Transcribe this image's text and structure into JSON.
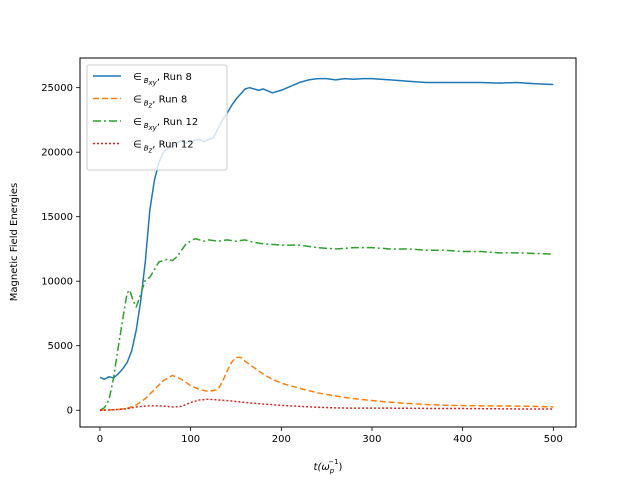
{
  "chart_data": {
    "type": "line",
    "xlabel_var": "t",
    "xlabel_paren_open": "(ω",
    "xlabel_sub": "p",
    "xlabel_sup": "−1",
    "xlabel_paren_close": ")",
    "ylabel": "Magnetic Field Energies",
    "xlim": [
      -22,
      525
    ],
    "ylim": [
      -1300,
      27300
    ],
    "xticks": [
      0,
      100,
      200,
      300,
      400,
      500
    ],
    "yticks": [
      0,
      5000,
      10000,
      15000,
      20000,
      25000
    ],
    "grid": false,
    "legend_position": "upper-left",
    "series": [
      {
        "label_symbol": "∈",
        "label_sub_main": "B",
        "label_sub_sub": "xy",
        "label_run": ", Run 8",
        "color": "#1f77b4",
        "style": "solid",
        "x": [
          0,
          5,
          10,
          15,
          20,
          25,
          30,
          35,
          40,
          45,
          50,
          55,
          60,
          65,
          70,
          75,
          80,
          85,
          90,
          95,
          100,
          105,
          110,
          115,
          120,
          125,
          130,
          135,
          140,
          145,
          150,
          155,
          160,
          165,
          170,
          175,
          180,
          190,
          200,
          210,
          220,
          230,
          240,
          250,
          260,
          270,
          280,
          290,
          300,
          320,
          340,
          360,
          380,
          400,
          420,
          440,
          460,
          480,
          500
        ],
        "y": [
          2550,
          2400,
          2600,
          2500,
          2800,
          3200,
          3700,
          4600,
          6200,
          8500,
          11500,
          15500,
          17800,
          19200,
          20000,
          20300,
          20400,
          20700,
          20900,
          20700,
          20800,
          20900,
          21000,
          20800,
          21000,
          21100,
          21800,
          22500,
          23000,
          23600,
          24100,
          24500,
          24900,
          25000,
          24900,
          24800,
          24900,
          24600,
          24800,
          25100,
          25400,
          25600,
          25700,
          25700,
          25600,
          25700,
          25650,
          25700,
          25700,
          25600,
          25500,
          25400,
          25400,
          25400,
          25400,
          25350,
          25400,
          25300,
          25250
        ]
      },
      {
        "label_symbol": "∈",
        "label_sub_main": "B",
        "label_sub_sub": "z",
        "label_run": ", Run 8",
        "color": "#ff7f0e",
        "style": "dashed",
        "x": [
          0,
          10,
          20,
          30,
          40,
          50,
          60,
          70,
          80,
          90,
          100,
          110,
          120,
          130,
          135,
          140,
          145,
          150,
          155,
          160,
          170,
          180,
          190,
          200,
          220,
          240,
          260,
          280,
          300,
          320,
          340,
          360,
          380,
          400,
          420,
          440,
          460,
          480,
          500
        ],
        "y": [
          0,
          30,
          60,
          150,
          400,
          900,
          1600,
          2300,
          2700,
          2400,
          1900,
          1600,
          1450,
          1600,
          2200,
          3000,
          3700,
          4100,
          4100,
          3800,
          3300,
          2800,
          2400,
          2100,
          1700,
          1350,
          1100,
          900,
          750,
          620,
          520,
          440,
          390,
          360,
          340,
          330,
          320,
          300,
          250
        ]
      },
      {
        "label_symbol": "∈",
        "label_sub_main": "B",
        "label_sub_sub": "xy",
        "label_run": ", Run 12",
        "color": "#2ca02c",
        "style": "dashdot",
        "x": [
          0,
          5,
          10,
          15,
          20,
          25,
          30,
          33,
          36,
          40,
          45,
          50,
          55,
          60,
          65,
          70,
          75,
          80,
          85,
          90,
          95,
          100,
          105,
          110,
          115,
          120,
          130,
          140,
          150,
          160,
          170,
          180,
          200,
          220,
          240,
          260,
          280,
          300,
          320,
          340,
          360,
          380,
          400,
          420,
          440,
          460,
          480,
          500
        ],
        "y": [
          0,
          200,
          800,
          2500,
          4800,
          7000,
          9100,
          9300,
          8600,
          8000,
          9000,
          10100,
          10300,
          10900,
          11500,
          11600,
          11700,
          11600,
          11900,
          12400,
          12900,
          13100,
          13300,
          13200,
          13100,
          13200,
          13100,
          13200,
          13100,
          13200,
          13000,
          12900,
          12800,
          12800,
          12600,
          12500,
          12600,
          12600,
          12500,
          12500,
          12400,
          12400,
          12300,
          12300,
          12200,
          12200,
          12150,
          12100
        ]
      },
      {
        "label_symbol": "∈",
        "label_sub_main": "B",
        "label_sub_sub": "z",
        "label_run": ", Run 12",
        "color": "#d62728",
        "style": "dotted",
        "x": [
          0,
          10,
          20,
          30,
          40,
          50,
          60,
          70,
          80,
          90,
          100,
          110,
          120,
          130,
          140,
          150,
          160,
          180,
          200,
          220,
          240,
          260,
          280,
          300,
          320,
          340,
          360,
          380,
          400,
          420,
          440,
          460,
          480,
          500
        ],
        "y": [
          0,
          20,
          60,
          120,
          250,
          320,
          350,
          320,
          250,
          300,
          600,
          800,
          850,
          800,
          750,
          680,
          600,
          480,
          380,
          300,
          230,
          180,
          160,
          160,
          160,
          150,
          140,
          130,
          130,
          120,
          110,
          100,
          100,
          90
        ]
      }
    ]
  }
}
